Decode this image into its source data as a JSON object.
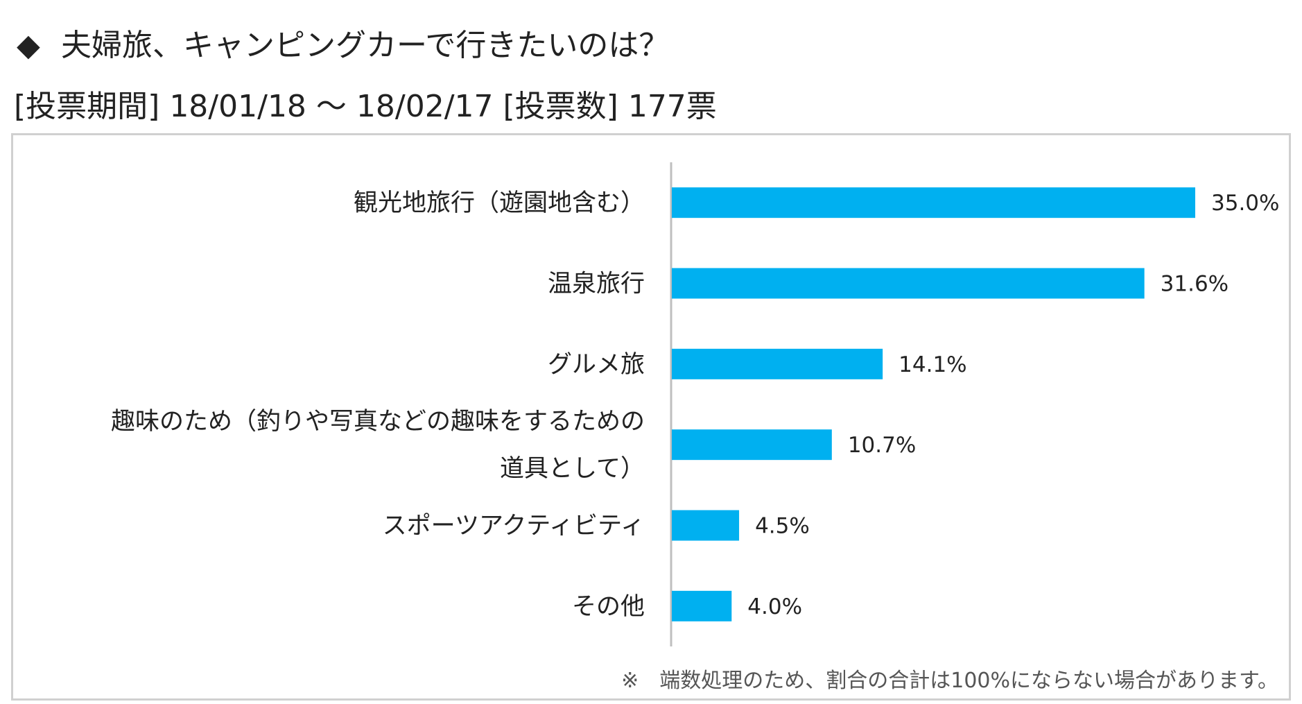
{
  "header": {
    "title_marker": "◆",
    "title": "夫婦旅、キャンピングカーで行きたいのは？",
    "period_line": "[投票期間] 18/01/18 ～ 18/02/17 [投票数] 177票"
  },
  "chart_data": {
    "type": "bar",
    "orientation": "horizontal",
    "categories": [
      [
        "観光地旅行（遊園地含む）"
      ],
      [
        "温泉旅行"
      ],
      [
        "グルメ旅"
      ],
      [
        "趣味のため（釣りや写真などの趣味をするための",
        "道具として）"
      ],
      [
        "スポーツアクティビティ"
      ],
      [
        "その他"
      ]
    ],
    "values": [
      35.0,
      31.6,
      14.1,
      10.7,
      4.5,
      4.0
    ],
    "value_labels": [
      "35.0%",
      "31.6%",
      "14.1%",
      "10.7%",
      "4.5%",
      "4.0%"
    ],
    "unit": "%",
    "xlim": [
      0,
      35.0
    ],
    "grid": false,
    "legend": "none",
    "bar_color": "#00b0f0"
  },
  "footnote": "※　端数処理のため、割合の合計は100%にならない場合があります。"
}
